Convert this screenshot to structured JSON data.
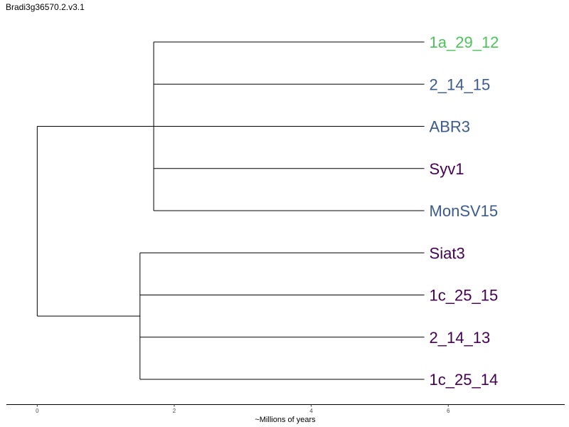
{
  "chart_data": {
    "type": "dendrogram",
    "title": "Bradi3g36570.2.v3.1",
    "xlabel": "~Millions of years",
    "xlim": [
      -0.45,
      7.7
    ],
    "x_ticks": [
      0,
      2,
      4,
      6
    ],
    "colors": {
      "green": "#4cc35b",
      "blue": "#3b5b8c",
      "purple": "#440154",
      "line": "#000000"
    },
    "root": {
      "x": 0,
      "children": [
        {
          "x": 1.7,
          "children": [
            {
              "label": "1a_29_12",
              "x": 5.65,
              "color": "green"
            },
            {
              "label": "2_14_15",
              "x": 5.65,
              "color": "blue"
            },
            {
              "label": "ABR3",
              "x": 5.65,
              "color": "blue"
            },
            {
              "label": "Syv1",
              "x": 5.65,
              "color": "purple"
            },
            {
              "label": "MonSV15",
              "x": 5.65,
              "color": "blue"
            }
          ]
        },
        {
          "x": 1.5,
          "children": [
            {
              "label": "Siat3",
              "x": 5.65,
              "color": "purple"
            },
            {
              "label": "1c_25_15",
              "x": 5.65,
              "color": "purple"
            },
            {
              "label": "2_14_13",
              "x": 5.65,
              "color": "purple"
            },
            {
              "label": "1c_25_14",
              "x": 5.65,
              "color": "purple"
            }
          ]
        }
      ]
    }
  }
}
